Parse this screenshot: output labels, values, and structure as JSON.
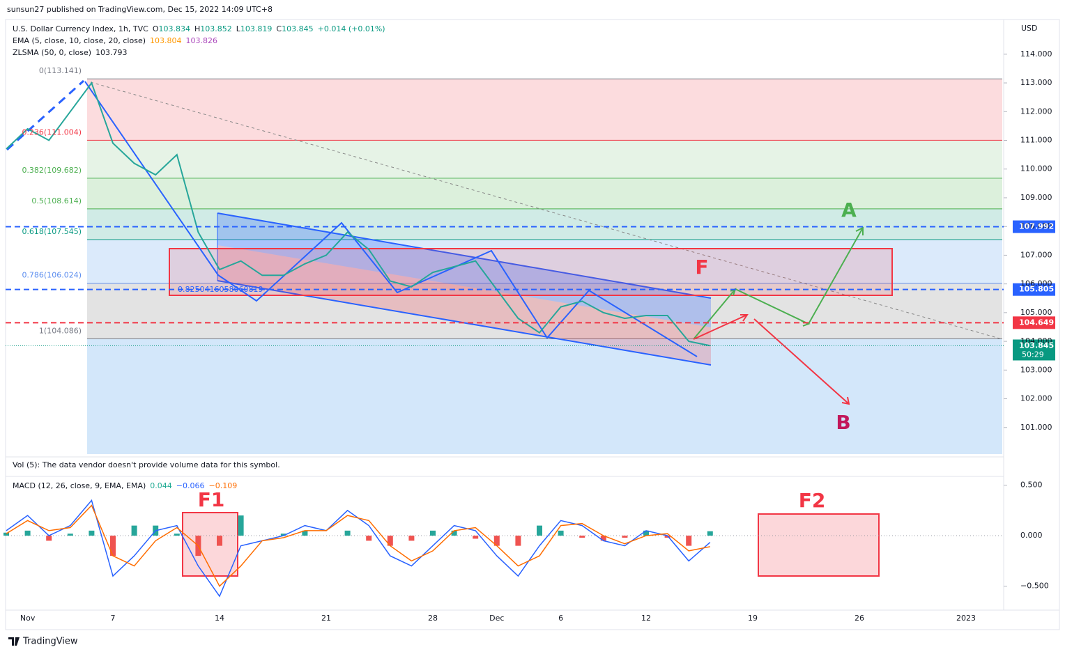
{
  "header": {
    "published": "sunsun27 published on TradingView.com, Dec 15, 2022 14:09 UTC+8"
  },
  "footer": {
    "brand": "TradingView"
  },
  "chart_data": [
    {
      "type": "line",
      "title": "U.S. Dollar Currency Index, 1h, TVC",
      "ohlc": [
        {
          "prefix": "O",
          "value": 103.834
        },
        {
          "prefix": "H",
          "value": 103.852
        },
        {
          "prefix": "L",
          "value": 103.819
        },
        {
          "prefix": "C",
          "value": 103.845
        }
      ],
      "change": "+0.014 (+0.01%)",
      "indicators": [
        {
          "name": "EMA (5, close, 10, close, 20, close)",
          "values": [
            103.804,
            103.826
          ],
          "colors": [
            "#ff9800",
            "#ab47bc"
          ]
        },
        {
          "name": "ZLSMA (50, 0, close)",
          "values": [
            103.793
          ],
          "colors": [
            "#131722"
          ]
        }
      ],
      "currency": "USD",
      "volume_note": "Vol (5): The data vendor doesn't provide volume data for this symbol.",
      "values": [
        110.7,
        111.4,
        111.0,
        112.0,
        113.0,
        110.9,
        110.2,
        109.8,
        110.5,
        107.8,
        106.5,
        106.8,
        106.3,
        106.3,
        106.7,
        107.0,
        107.8,
        107.2,
        106.1,
        105.9,
        106.4,
        106.6,
        106.8,
        105.8,
        104.8,
        104.3,
        105.2,
        105.4,
        105.0,
        104.8,
        104.9,
        104.9,
        104.0,
        103.85,
        null,
        null,
        null,
        null,
        null,
        null,
        null,
        null,
        null,
        null,
        null,
        null,
        null
      ],
      "color": "#26a69a",
      "ylim": [
        100,
        115.16
      ],
      "yticks": [
        {
          "value": 114,
          "label": "114.000"
        },
        {
          "value": 113,
          "label": "113.000"
        },
        {
          "value": 112,
          "label": "112.000"
        },
        {
          "value": 111,
          "label": "111.000"
        },
        {
          "value": 110,
          "label": "110.000"
        },
        {
          "value": 109,
          "label": "109.000"
        },
        {
          "value": 108,
          "label": "108.000"
        },
        {
          "value": 107,
          "label": "107.000"
        },
        {
          "value": 106,
          "label": "106.000"
        },
        {
          "value": 105,
          "label": "105.000"
        },
        {
          "value": 104,
          "label": "104.000"
        },
        {
          "value": 103,
          "label": "103.000"
        },
        {
          "value": 102,
          "label": "102.000"
        },
        {
          "value": 101,
          "label": "101.000"
        }
      ],
      "fib_levels": [
        {
          "label": "0(113.141)",
          "value": 113.141,
          "color": "#fcdcde",
          "line_color": "#787b86"
        },
        {
          "label": "0.236(111.004)",
          "value": 111.004,
          "color": "#e6f3e6",
          "line_color": "#f23645"
        },
        {
          "label": "0.382(109.682)",
          "value": 109.682,
          "color": "#dcf0dc",
          "line_color": "#4caf50"
        },
        {
          "label": "0.5(108.614)",
          "value": 108.614,
          "color": "#d0ebe6",
          "line_color": "#4caf50"
        },
        {
          "label": "0.618(107.545)",
          "value": 107.545,
          "color": "#dbeafb",
          "line_color": "#089981"
        },
        {
          "label": "0.786(106.024)",
          "value": 106.024,
          "color": "#e3e3e3",
          "line_color": "#5b8def"
        },
        {
          "label": "1(104.086)",
          "value": 104.086,
          "color": "#d3e7fa",
          "line_color": "#787b86"
        }
      ],
      "price_lines": [
        {
          "value": 107.992,
          "color": "#2962ff"
        },
        {
          "value": 105.805,
          "color": "#2962ff"
        },
        {
          "value": 104.649,
          "color": "#f23645"
        }
      ],
      "last_price": {
        "value": 103.845,
        "countdown": "50:29",
        "color": "#089981"
      },
      "annotations": {
        "f": "F",
        "a": "A",
        "b": "B",
        "ratio": "0.8250416058060819"
      }
    },
    {
      "type": "macd",
      "title": "MACD (12, 26, close, 9, EMA, EMA)",
      "readout": [
        0.044,
        -0.066,
        -0.109
      ],
      "readout_labels": [
        "0.044",
        "−0.066",
        "−0.109"
      ],
      "readout_colors": [
        "#22ab94",
        "#2962ff",
        "#ff6d00"
      ],
      "categories": [
        null,
        "Nov",
        null,
        null,
        null,
        "7",
        null,
        null,
        null,
        null,
        "14",
        null,
        null,
        null,
        null,
        "21",
        null,
        null,
        null,
        null,
        "28",
        null,
        null,
        "Dec",
        null,
        null,
        "6",
        null,
        null,
        null,
        "12",
        null,
        null,
        null,
        null,
        "19",
        null,
        null,
        null,
        null,
        "26",
        null,
        null,
        null,
        null,
        "2023",
        null
      ],
      "series": [
        {
          "color": "#2962ff",
          "values": [
            0.05,
            0.2,
            0.0,
            0.1,
            0.35,
            -0.4,
            -0.2,
            0.05,
            0.1,
            -0.3,
            -0.6,
            -0.1,
            -0.05,
            0.0,
            0.1,
            0.05,
            0.25,
            0.1,
            -0.2,
            -0.3,
            -0.1,
            0.1,
            0.05,
            -0.2,
            -0.4,
            -0.1,
            0.15,
            0.1,
            -0.05,
            -0.1,
            0.05,
            0.0,
            -0.25,
            -0.066,
            null,
            null,
            null,
            null,
            null,
            null,
            null,
            null,
            null,
            null,
            null,
            null,
            null
          ]
        },
        {
          "color": "#ff6d00",
          "values": [
            0.02,
            0.15,
            0.05,
            0.08,
            0.3,
            -0.2,
            -0.3,
            -0.05,
            0.08,
            -0.1,
            -0.5,
            -0.3,
            -0.05,
            -0.02,
            0.05,
            0.05,
            0.2,
            0.15,
            -0.1,
            -0.25,
            -0.15,
            0.05,
            0.08,
            -0.1,
            -0.3,
            -0.2,
            0.1,
            0.12,
            0.0,
            -0.08,
            0.0,
            0.02,
            -0.15,
            -0.109,
            null,
            null,
            null,
            null,
            null,
            null,
            null,
            null,
            null,
            null,
            null,
            null,
            null
          ]
        }
      ],
      "histogram": {
        "values": [
          0.03,
          0.05,
          -0.05,
          0.02,
          0.05,
          -0.2,
          0.1,
          0.1,
          0.02,
          -0.2,
          -0.1,
          0.2,
          0.0,
          0.02,
          0.05,
          0.0,
          0.05,
          -0.05,
          -0.1,
          -0.05,
          0.05,
          0.05,
          -0.03,
          -0.1,
          -0.1,
          0.1,
          0.05,
          -0.02,
          -0.05,
          -0.02,
          0.05,
          -0.02,
          -0.1,
          0.044,
          null,
          null,
          null,
          null,
          null,
          null,
          null,
          null,
          null,
          null,
          null,
          null,
          null
        ],
        "up_color": "#26a69a",
        "down_color": "#ef5350"
      },
      "ylim": [
        -0.73,
        0.58
      ],
      "yticks": [
        {
          "value": 0.5,
          "label": "0.500"
        },
        {
          "value": 0,
          "label": "0.000"
        },
        {
          "value": -0.5,
          "label": "−0.500"
        }
      ],
      "annotations": {
        "f1": "F1",
        "f2": "F2"
      }
    }
  ]
}
